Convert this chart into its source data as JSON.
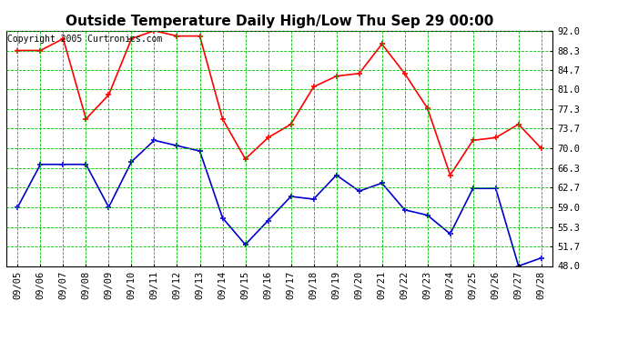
{
  "title": "Outside Temperature Daily High/Low Thu Sep 29 00:00",
  "copyright": "Copyright 2005 Curtronics.com",
  "dates": [
    "09/05",
    "09/06",
    "09/07",
    "09/08",
    "09/09",
    "09/10",
    "09/11",
    "09/12",
    "09/13",
    "09/14",
    "09/15",
    "09/16",
    "09/17",
    "09/18",
    "09/19",
    "09/20",
    "09/21",
    "09/22",
    "09/23",
    "09/24",
    "09/25",
    "09/26",
    "09/27",
    "09/28"
  ],
  "high_temps": [
    88.3,
    88.3,
    90.5,
    75.5,
    80.0,
    90.5,
    92.0,
    91.0,
    91.0,
    75.5,
    68.0,
    72.0,
    74.5,
    81.5,
    83.5,
    84.0,
    89.5,
    84.0,
    77.5,
    65.0,
    71.5,
    72.0,
    74.5,
    70.0
  ],
  "low_temps": [
    59.0,
    67.0,
    67.0,
    67.0,
    59.0,
    67.5,
    71.5,
    70.5,
    69.5,
    57.0,
    52.0,
    56.5,
    61.0,
    60.5,
    65.0,
    62.0,
    63.5,
    58.5,
    57.5,
    54.0,
    62.5,
    62.5,
    48.0,
    49.5
  ],
  "ylim": [
    48.0,
    92.0
  ],
  "yticks": [
    48.0,
    51.7,
    55.3,
    59.0,
    62.7,
    66.3,
    70.0,
    73.7,
    77.3,
    81.0,
    84.7,
    88.3,
    92.0
  ],
  "high_color": "#FF0000",
  "low_color": "#0000CC",
  "grid_color": "#00BB00",
  "bg_color": "#FFFFFF",
  "title_fontsize": 11,
  "tick_fontsize": 7.5,
  "copyright_fontsize": 7.0
}
